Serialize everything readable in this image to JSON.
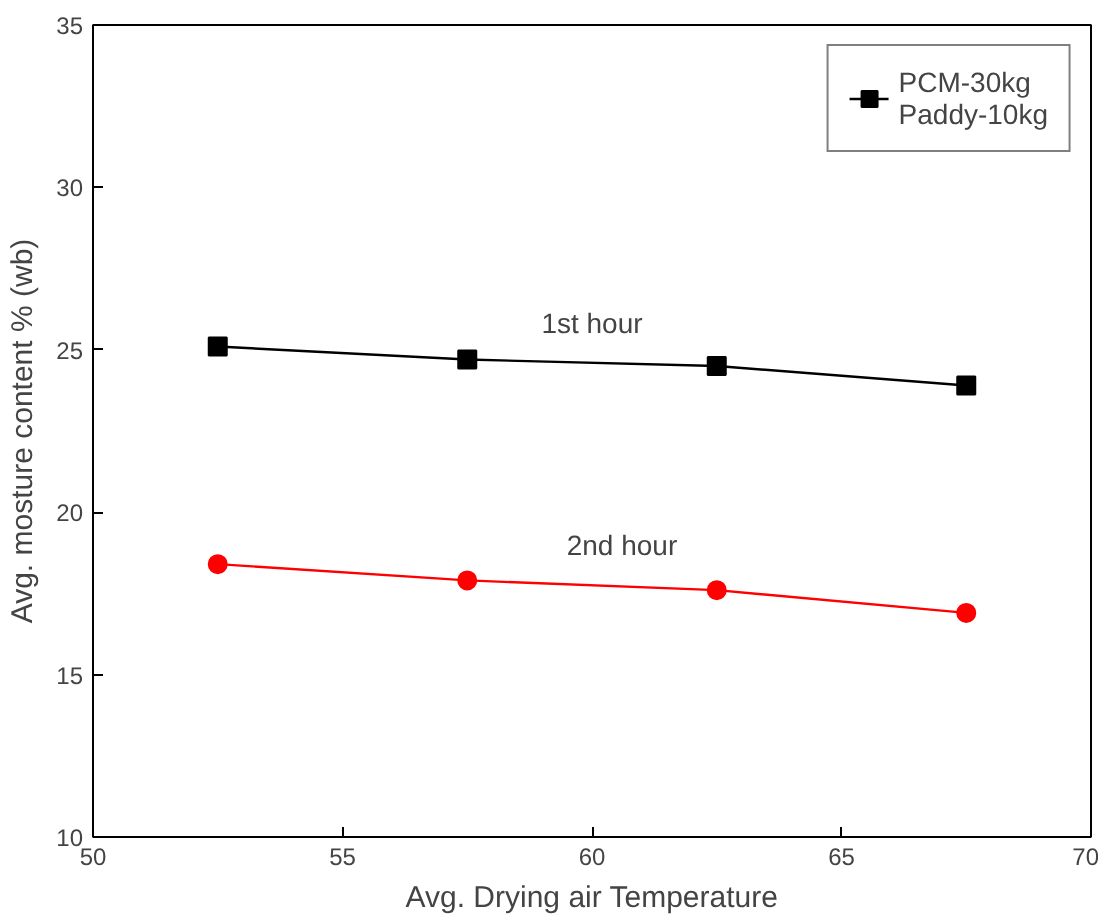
{
  "chart_data": {
    "type": "line",
    "xlabel": "Avg. Drying air Temperature",
    "ylabel": "Avg. mosture content % (wb)",
    "x": [
      52.5,
      57.5,
      62.5,
      67.5
    ],
    "series": [
      {
        "name": "PCM-30kg\nPaddy-10kg",
        "color": "#000000",
        "marker": "square",
        "values": [
          25.1,
          24.7,
          24.5,
          23.9
        ]
      },
      {
        "color": "#ff0000",
        "marker": "circle",
        "values": [
          18.4,
          17.9,
          17.6,
          16.9
        ]
      }
    ],
    "annotations": [
      "1st hour",
      "2nd hour"
    ],
    "xlim": [
      50,
      70
    ],
    "xticks": [
      50,
      55,
      60,
      65,
      70
    ],
    "ylim": [
      10,
      35
    ],
    "yticks": [
      10,
      15,
      20,
      25,
      30,
      35
    ],
    "grid": false,
    "legend": "top right"
  }
}
